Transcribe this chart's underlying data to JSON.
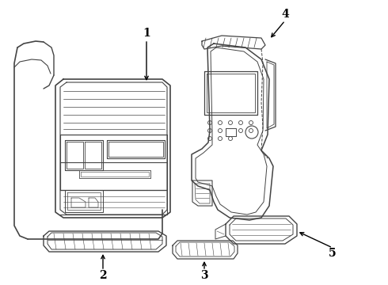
{
  "background_color": "#ffffff",
  "line_color": "#444444",
  "line_width": 0.9,
  "label_color": "#000000",
  "fig_width": 4.9,
  "fig_height": 3.6,
  "dpi": 100
}
